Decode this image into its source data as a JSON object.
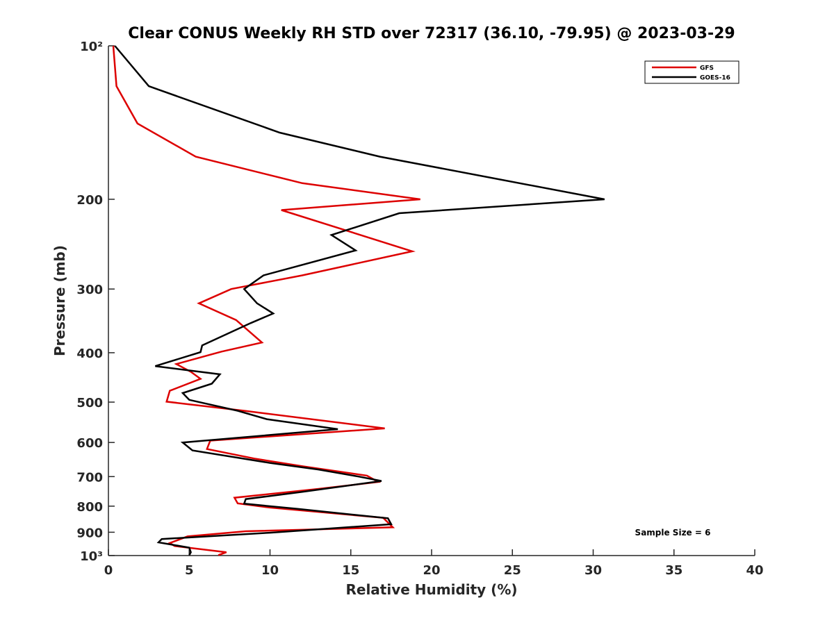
{
  "chart_data": {
    "type": "line",
    "title": "Clear CONUS Weekly RH STD over 72317 (36.10, -79.95) @ 2023-03-29",
    "xlabel": "Relative Humidity (%)",
    "ylabel": "Pressure (mb)",
    "xlim": [
      0,
      40
    ],
    "ylim": [
      100,
      1000
    ],
    "yscale": "log",
    "yreversed": true,
    "grid": false,
    "legend_position": "top-right",
    "x_ticks": [
      0,
      5,
      10,
      15,
      20,
      25,
      30,
      35,
      40
    ],
    "x_tick_labels": [
      "0",
      "5",
      "10",
      "15",
      "20",
      "25",
      "30",
      "35",
      "40"
    ],
    "y_ticks": [
      100,
      200,
      300,
      400,
      500,
      600,
      700,
      800,
      900,
      1000
    ],
    "y_tick_labels": [
      "10²",
      "200",
      "300",
      "400",
      "500",
      "600",
      "700",
      "800",
      "900",
      "10³"
    ],
    "annotation": "Sample Size = 6",
    "series": [
      {
        "name": "GFS",
        "color": "#dd0000",
        "points": [
          [
            0.3,
            100
          ],
          [
            0.5,
            120
          ],
          [
            1.8,
            142
          ],
          [
            5.4,
            165
          ],
          [
            12.0,
            186
          ],
          [
            19.3,
            200
          ],
          [
            10.7,
            210
          ],
          [
            18.8,
            253
          ],
          [
            12.0,
            282
          ],
          [
            7.6,
            300
          ],
          [
            5.6,
            320
          ],
          [
            7.9,
            345
          ],
          [
            9.5,
            382
          ],
          [
            7.0,
            398
          ],
          [
            4.2,
            421
          ],
          [
            5.1,
            436
          ],
          [
            5.7,
            450
          ],
          [
            3.8,
            475
          ],
          [
            3.6,
            499
          ],
          [
            8.4,
            520
          ],
          [
            17.1,
            563
          ],
          [
            6.3,
            595
          ],
          [
            6.1,
            618
          ],
          [
            9.0,
            645
          ],
          [
            12.0,
            668
          ],
          [
            16.0,
            697
          ],
          [
            16.7,
            717
          ],
          [
            13.0,
            740
          ],
          [
            7.8,
            770
          ],
          [
            8.0,
            790
          ],
          [
            10.0,
            805
          ],
          [
            17.0,
            843
          ],
          [
            17.6,
            880
          ],
          [
            8.5,
            896
          ],
          [
            4.9,
            917
          ],
          [
            3.8,
            945
          ],
          [
            4.1,
            958
          ],
          [
            7.3,
            985
          ],
          [
            6.8,
            998
          ]
        ]
      },
      {
        "name": "GOES-16",
        "color": "#000000",
        "points": [
          [
            0.4,
            100
          ],
          [
            2.5,
            120
          ],
          [
            10.6,
            148
          ],
          [
            16.8,
            165
          ],
          [
            30.7,
            200
          ],
          [
            18.0,
            213
          ],
          [
            13.8,
            235
          ],
          [
            15.3,
            252
          ],
          [
            9.6,
            282
          ],
          [
            8.4,
            300
          ],
          [
            9.2,
            320
          ],
          [
            10.2,
            335
          ],
          [
            8.8,
            350
          ],
          [
            5.8,
            387
          ],
          [
            5.7,
            399
          ],
          [
            2.9,
            425
          ],
          [
            6.9,
            441
          ],
          [
            6.4,
            460
          ],
          [
            4.6,
            480
          ],
          [
            5.0,
            495
          ],
          [
            8.0,
            520
          ],
          [
            9.8,
            540
          ],
          [
            14.2,
            565
          ],
          [
            4.6,
            600
          ],
          [
            5.2,
            622
          ],
          [
            10.0,
            658
          ],
          [
            13.0,
            678
          ],
          [
            15.5,
            700
          ],
          [
            16.9,
            714
          ],
          [
            12.0,
            750
          ],
          [
            8.5,
            775
          ],
          [
            8.4,
            791
          ],
          [
            11.7,
            810
          ],
          [
            17.3,
            845
          ],
          [
            17.5,
            868
          ],
          [
            10.0,
            902
          ],
          [
            3.3,
            928
          ],
          [
            3.1,
            942
          ],
          [
            5.0,
            965
          ],
          [
            5.1,
            985
          ],
          [
            5.0,
            998
          ]
        ]
      }
    ]
  }
}
